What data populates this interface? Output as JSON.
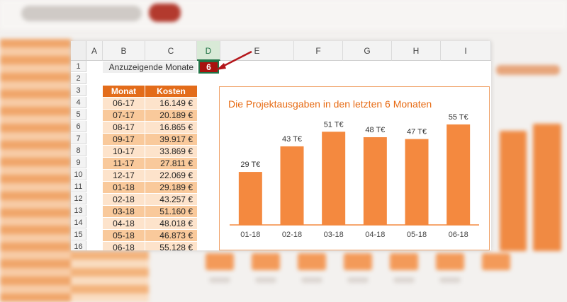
{
  "sheet": {
    "columns": [
      "A",
      "B",
      "C",
      "D",
      "E",
      "F",
      "G",
      "H",
      "I"
    ],
    "selected_column": "D",
    "rows": [
      "1",
      "2",
      "3",
      "4",
      "5",
      "6",
      "7",
      "8",
      "9",
      "10",
      "11",
      "12",
      "13",
      "14",
      "15",
      "16"
    ],
    "label": "Anzuzeigende Monate",
    "input_value": "6"
  },
  "table": {
    "headers": [
      "Monat",
      "Kosten"
    ],
    "rows": [
      {
        "monat": "06-17",
        "kosten": "16.149 €"
      },
      {
        "monat": "07-17",
        "kosten": "20.189 €"
      },
      {
        "monat": "08-17",
        "kosten": "16.865 €"
      },
      {
        "monat": "09-17",
        "kosten": "39.917 €"
      },
      {
        "monat": "10-17",
        "kosten": "33.869 €"
      },
      {
        "monat": "11-17",
        "kosten": "27.811 €"
      },
      {
        "monat": "12-17",
        "kosten": "22.069 €"
      },
      {
        "monat": "01-18",
        "kosten": "29.189 €"
      },
      {
        "monat": "02-18",
        "kosten": "43.257 €"
      },
      {
        "monat": "03-18",
        "kosten": "51.160 €"
      },
      {
        "monat": "04-18",
        "kosten": "48.018 €"
      },
      {
        "monat": "05-18",
        "kosten": "46.873 €"
      },
      {
        "monat": "06-18",
        "kosten": "55.128 €"
      }
    ]
  },
  "chart_data": {
    "type": "bar",
    "title": "Die Projektausgaben in den letzten 6 Monaten",
    "categories": [
      "01-18",
      "02-18",
      "03-18",
      "04-18",
      "05-18",
      "06-18"
    ],
    "values": [
      29,
      43,
      51,
      48,
      47,
      55
    ],
    "data_labels": [
      "29 T€",
      "43 T€",
      "51 T€",
      "48 T€",
      "47 T€",
      "55 T€"
    ],
    "ylim": [
      0,
      60
    ],
    "bar_color": "#f4893f",
    "grid": false,
    "legend": "none"
  },
  "colors": {
    "header_orange": "#e36c1a",
    "row_light": "#fde3cb",
    "row_dark": "#f9c99b",
    "input_red": "#a8120e",
    "arrow_red": "#b4161b"
  }
}
